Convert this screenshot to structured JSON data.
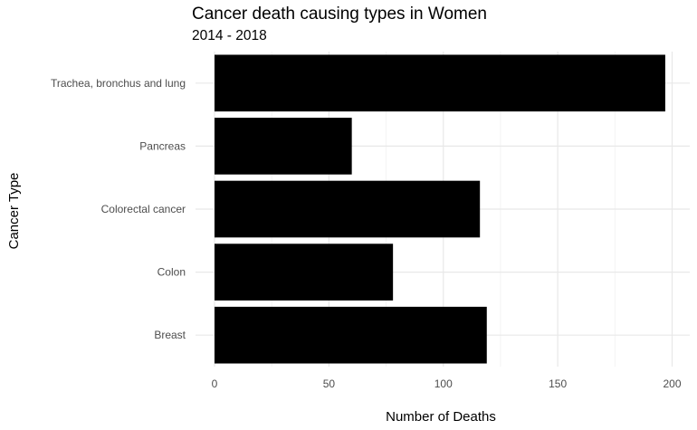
{
  "chart_data": {
    "type": "bar",
    "orientation": "horizontal",
    "title": "Cancer death causing types in Women",
    "subtitle": "2014 - 2018",
    "xlabel": "Number of Deaths",
    "ylabel": "Cancer Type",
    "categories": [
      "Trachea, bronchus and lung",
      "Pancreas",
      "Colorectal cancer",
      "Colon",
      "Breast"
    ],
    "values": [
      197,
      60,
      116,
      78,
      119
    ],
    "xlim": [
      0,
      205
    ],
    "xticks": [
      0,
      50,
      100,
      150,
      200
    ],
    "bar_color": "#000000",
    "grid": true,
    "legend": "none"
  }
}
